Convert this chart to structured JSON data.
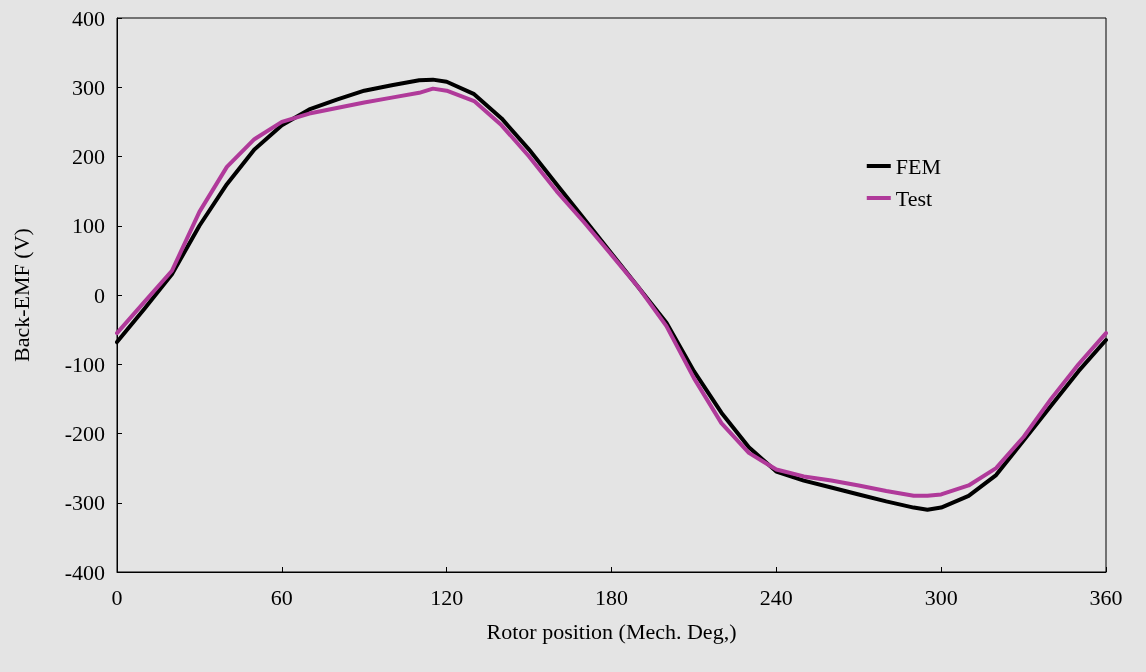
{
  "chart_data": {
    "type": "line",
    "xlabel": "Rotor position (Mech. Deg,)",
    "ylabel": "Back-EMF (V)",
    "xlim": [
      0,
      360
    ],
    "xticks": [
      0,
      60,
      120,
      180,
      240,
      300,
      360
    ],
    "ylim": [
      -400,
      400
    ],
    "yticks": [
      -400,
      -300,
      -200,
      -100,
      0,
      100,
      200,
      300,
      400
    ],
    "grid": false,
    "legend": "right",
    "marker": "none",
    "line_style": "solid",
    "x": [
      0,
      10,
      20,
      30,
      40,
      50,
      60,
      70,
      80,
      90,
      100,
      110,
      115,
      120,
      130,
      140,
      150,
      160,
      170,
      180,
      190,
      200,
      210,
      220,
      230,
      240,
      250,
      260,
      270,
      280,
      290,
      295,
      300,
      310,
      320,
      330,
      340,
      350,
      360
    ],
    "series": [
      {
        "name": "FEM",
        "color": "#000000",
        "values": [
          -68,
          -20,
          30,
          100,
          160,
          210,
          245,
          268,
          282,
          295,
          303,
          310,
          311,
          308,
          290,
          255,
          210,
          160,
          110,
          60,
          10,
          -40,
          -110,
          -170,
          -220,
          -255,
          -268,
          -278,
          -288,
          -298,
          -307,
          -310,
          -307,
          -290,
          -260,
          -210,
          -160,
          -110,
          -65
        ]
      },
      {
        "name": "Test",
        "color": "#b03a9a",
        "values": [
          -55,
          -10,
          35,
          120,
          185,
          225,
          250,
          262,
          270,
          278,
          285,
          292,
          298,
          295,
          280,
          245,
          200,
          150,
          105,
          58,
          10,
          -45,
          -120,
          -185,
          -228,
          -252,
          -262,
          -268,
          -275,
          -283,
          -290,
          -290,
          -288,
          -275,
          -250,
          -205,
          -150,
          -100,
          -55
        ]
      }
    ]
  }
}
